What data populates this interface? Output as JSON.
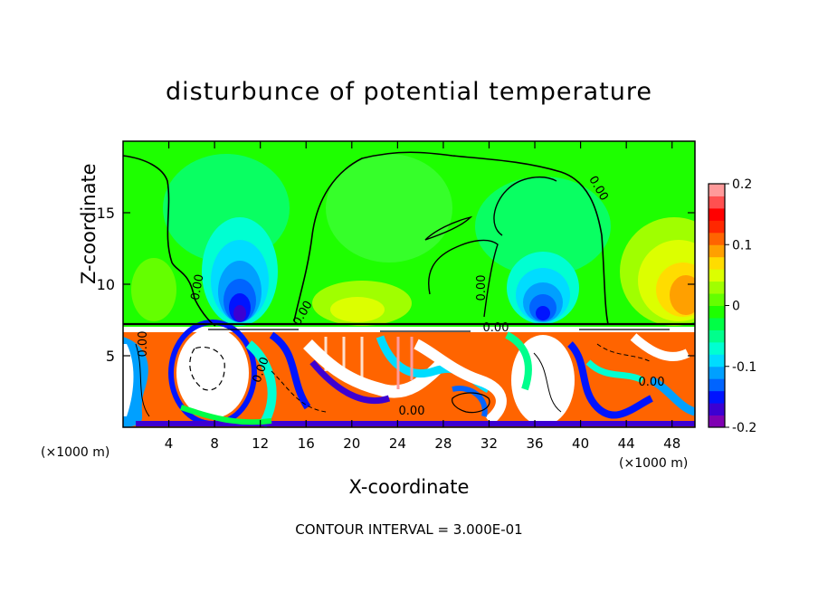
{
  "chart_data": {
    "type": "heatmap",
    "title": "disturbunce of potential temperature",
    "xlabel": "X-coordinate",
    "ylabel": "Z-coordinate",
    "x_scale_note": "(×1000 m)",
    "x_scale_note_right": "(×1000 m)",
    "xlim": [
      0,
      50
    ],
    "ylim": [
      0,
      20
    ],
    "x_ticks": [
      4,
      8,
      12,
      16,
      20,
      24,
      28,
      32,
      36,
      40,
      44,
      48
    ],
    "y_ticks": [
      5,
      10,
      15
    ],
    "colorbar": {
      "range": [
        -0.2,
        0.2
      ],
      "tick_labels": [
        "0.2",
        "0.1",
        "0",
        "-0.1",
        "-0.2"
      ],
      "tick_values": [
        0.2,
        0.1,
        0,
        -0.1,
        -0.2
      ],
      "colors": [
        "#7f00b2",
        "#3c00d2",
        "#0014ff",
        "#0064ff",
        "#00a0ff",
        "#00dcff",
        "#00ffd2",
        "#00ff8c",
        "#00ff46",
        "#1eff00",
        "#64ff00",
        "#a0ff00",
        "#dcff00",
        "#ffdc00",
        "#ffa000",
        "#ff6400",
        "#ff2800",
        "#ff0000",
        "#ff5050",
        "#ff9a9a"
      ]
    },
    "contour_labels": [
      "0.00",
      "0.00",
      "0.00",
      "0.00",
      "0.00",
      "0.00",
      "0.00",
      "0.00",
      "0.00"
    ],
    "contour_interval": "CONTOUR INTERVAL = 3.000E-01",
    "inversion_height": 7.3
  }
}
